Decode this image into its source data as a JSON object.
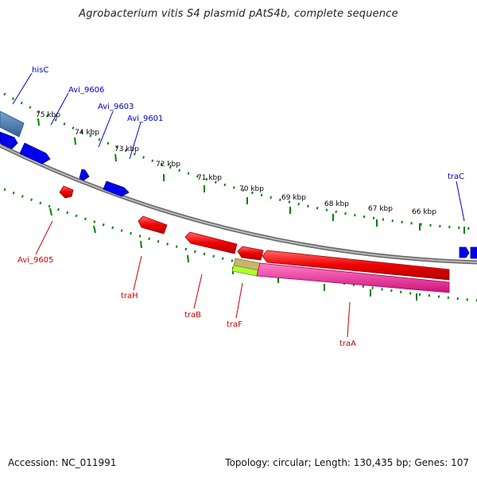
{
  "title": "Agrobacterium vitis S4 plasmid pAtS4b, complete sequence",
  "footer": {
    "accession": "Accession: NC_011991",
    "stats": "Topology: circular; Length: 130,435 bp; Genes: 107"
  },
  "scale_labels": [
    "75 kbp",
    "74 kbp",
    "73 kbp",
    "72 kbp",
    "71 kbp",
    "70 kbp",
    "69 kbp",
    "68 kbp",
    "67 kbp",
    "66 kbp"
  ],
  "gene_labels_forward": [
    "hisC",
    "Avi_9606",
    "Avi_9603",
    "Avi_9601",
    "traC"
  ],
  "gene_labels_reverse": [
    "Avi_9605",
    "traH",
    "traB",
    "traF",
    "traA"
  ],
  "colors": {
    "forward_cds": "#0000ee",
    "reverse_cds": "#ee0000",
    "forward_label": "#0000cc",
    "reverse_label": "#cc0000",
    "feature_steelblue": "#4682b4",
    "feature_pink": "#ff1493",
    "feature_lime": "#adff2f",
    "feature_tan": "#c8b46e",
    "backbone": "#888888",
    "ticks": "#008000"
  }
}
